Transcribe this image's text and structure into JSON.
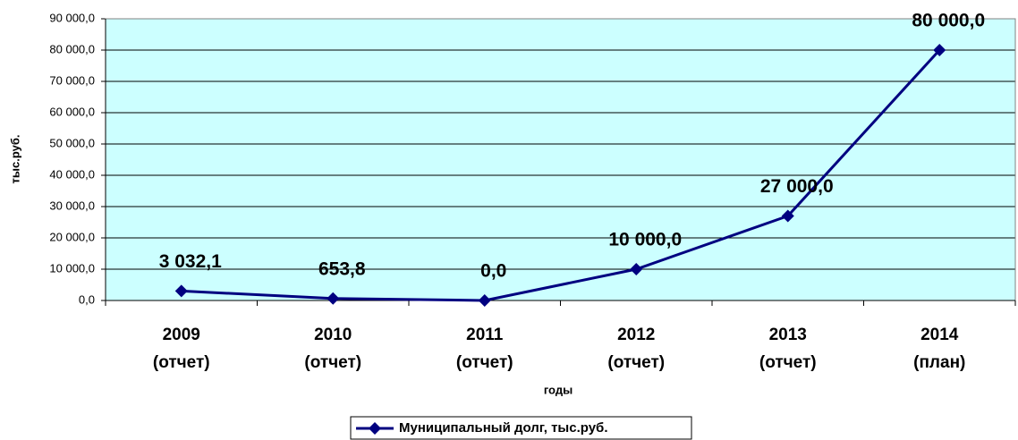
{
  "chart_data": {
    "type": "line",
    "categories": [
      "2009 (отчет)",
      "2010 (отчет)",
      "2011 (отчет)",
      "2012 (отчет)",
      "2013 (отчет)",
      "2014 (план)"
    ],
    "series": [
      {
        "name": "Муниципальный долг, тыс.руб.",
        "color": "#000080",
        "values": [
          3032.1,
          653.8,
          0,
          10000,
          27000,
          80000
        ],
        "value_labels": [
          "3 032,1",
          "653,8",
          "0,0",
          "10 000,0",
          "27 000,0",
          "80 000,0"
        ]
      }
    ],
    "ylim": [
      0,
      90000
    ],
    "yticks": [
      {
        "value": 0,
        "label": "0,0"
      },
      {
        "value": 10000,
        "label": "10 000,0"
      },
      {
        "value": 20000,
        "label": "20 000,0"
      },
      {
        "value": 30000,
        "label": "30 000,0"
      },
      {
        "value": 40000,
        "label": "40 000,0"
      },
      {
        "value": 50000,
        "label": "50 000,0"
      },
      {
        "value": 60000,
        "label": "60 000,0"
      },
      {
        "value": 70000,
        "label": "70 000,0"
      },
      {
        "value": 80000,
        "label": "80 000,0"
      },
      {
        "value": 90000,
        "label": "90 000,0"
      }
    ],
    "ylabel": "тыс.руб.",
    "xlabel": "годы",
    "grid": true,
    "legend": "bottom"
  }
}
